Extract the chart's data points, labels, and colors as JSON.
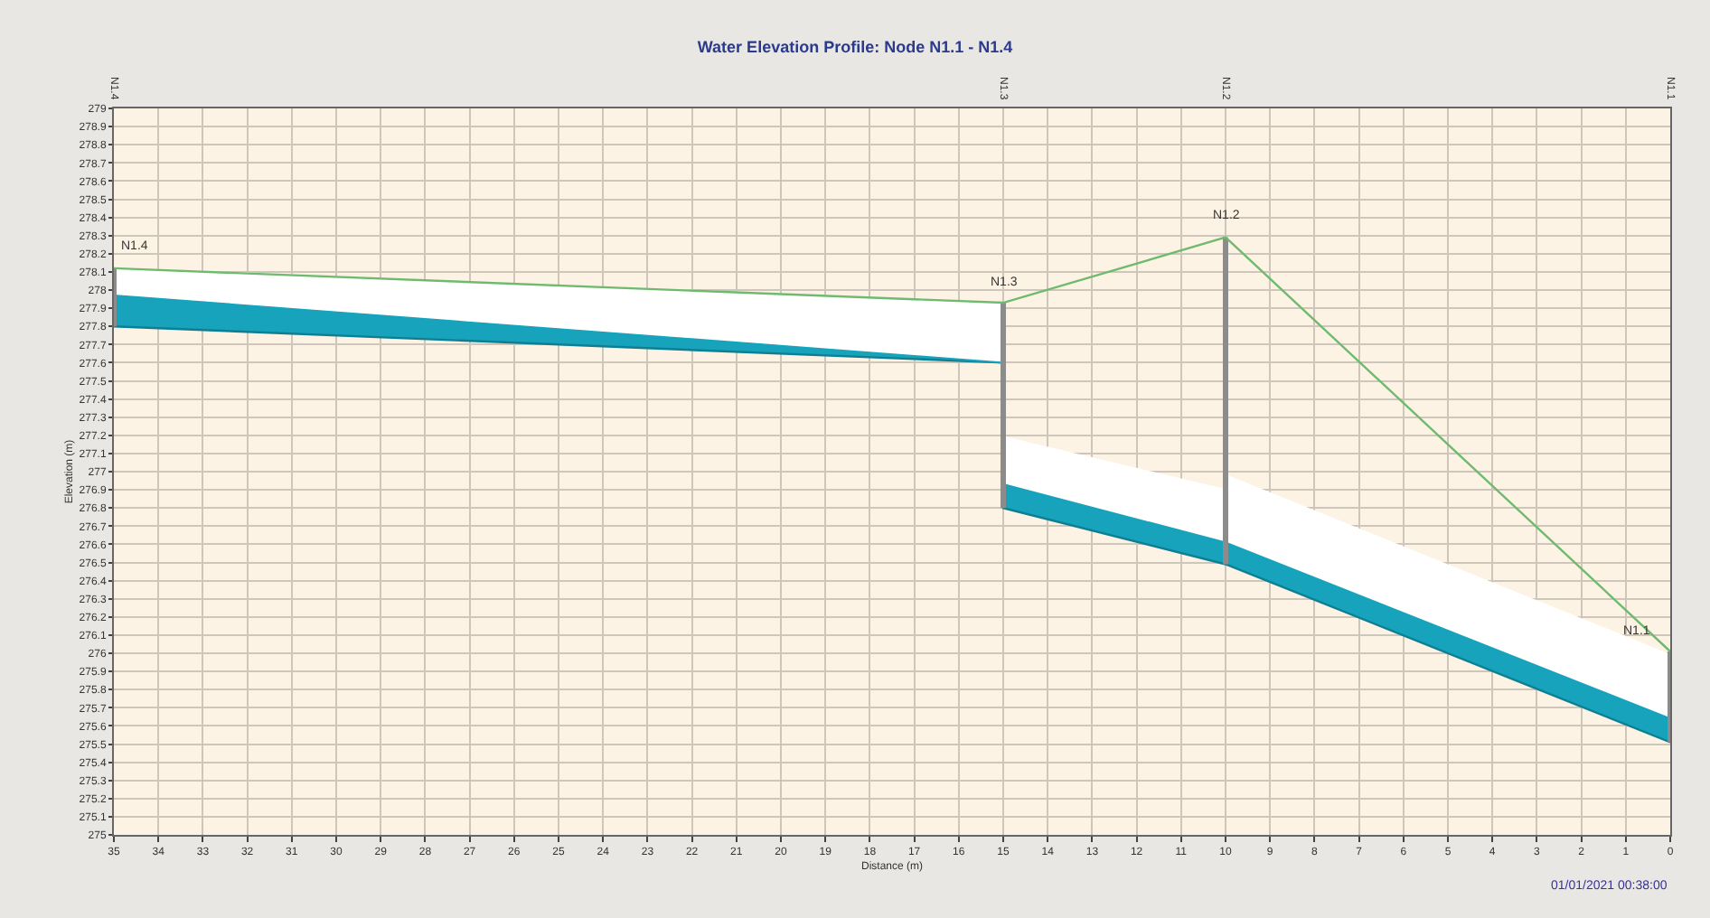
{
  "chart_data": {
    "type": "line",
    "title": "Water Elevation Profile: Node N1.1 - N1.4",
    "xlabel": "Distance (m)",
    "ylabel": "Elevation (m)",
    "xlim": [
      35,
      0
    ],
    "xticks": [
      35,
      34,
      33,
      32,
      31,
      30,
      29,
      28,
      27,
      26,
      25,
      24,
      23,
      22,
      21,
      20,
      19,
      18,
      17,
      16,
      15,
      14,
      13,
      12,
      11,
      10,
      9,
      8,
      7,
      6,
      5,
      4,
      3,
      2,
      1,
      0
    ],
    "ylim": [
      275,
      279
    ],
    "yticks": [
      275,
      275.1,
      275.2,
      275.3,
      275.4,
      275.5,
      275.6,
      275.7,
      275.8,
      275.9,
      276,
      276.1,
      276.2,
      276.3,
      276.4,
      276.5,
      276.6,
      276.7,
      276.8,
      276.9,
      277,
      277.1,
      277.2,
      277.3,
      277.4,
      277.5,
      277.6,
      277.7,
      277.8,
      277.9,
      278,
      278.1,
      278.2,
      278.3,
      278.4,
      278.5,
      278.6,
      278.7,
      278.8,
      278.9,
      279
    ],
    "grid": true,
    "marker": "none",
    "line_style": "solid",
    "series": [
      {
        "type": "line",
        "color": "#0e7f92",
        "x": [
          35,
          15,
          15,
          10,
          0
        ],
        "values": [
          277.8,
          277.6,
          276.8,
          276.49,
          275.51
        ]
      },
      {
        "type": "area",
        "color": "#17a3bb",
        "x": [
          35,
          15,
          15,
          10,
          0
        ],
        "values": [
          277.97,
          277.6,
          276.93,
          276.61,
          275.64
        ]
      },
      {
        "type": "area",
        "color": "#ffffff",
        "x": [
          35,
          15,
          15,
          10,
          10,
          0
        ],
        "values": [
          278.12,
          277.93,
          277.19,
          276.9,
          276.98,
          275.99
        ]
      },
      {
        "type": "line",
        "color": "#8c8c8c",
        "x": [
          35,
          35
        ],
        "values": [
          277.8,
          278.12
        ]
      },
      {
        "type": "line",
        "color": "#8c8c8c",
        "x": [
          15,
          15
        ],
        "values": [
          276.8,
          277.93
        ]
      },
      {
        "type": "line",
        "color": "#8c8c8c",
        "x": [
          10,
          10
        ],
        "values": [
          276.49,
          278.29
        ]
      },
      {
        "type": "line",
        "color": "#8c8c8c",
        "x": [
          0,
          0
        ],
        "values": [
          275.51,
          276.01
        ]
      },
      {
        "color": "#6fba6f",
        "x": [
          35,
          15,
          10,
          0
        ],
        "values": [
          278.12,
          277.93,
          278.29,
          276.01
        ]
      }
    ],
    "annotations": [
      "N1.4",
      "N1.3",
      "N1.2",
      "N1.1",
      {
        "text": "N1.4",
        "x": 35,
        "y": 278.12
      },
      {
        "text": "N1.3",
        "x": 15,
        "y": 277.93
      },
      {
        "text": "N1.2",
        "x": 10,
        "y": 278.29
      },
      {
        "text": "N1.1",
        "x": 0,
        "y": 276.01
      },
      "01/01/2021 00:38:00"
    ]
  }
}
